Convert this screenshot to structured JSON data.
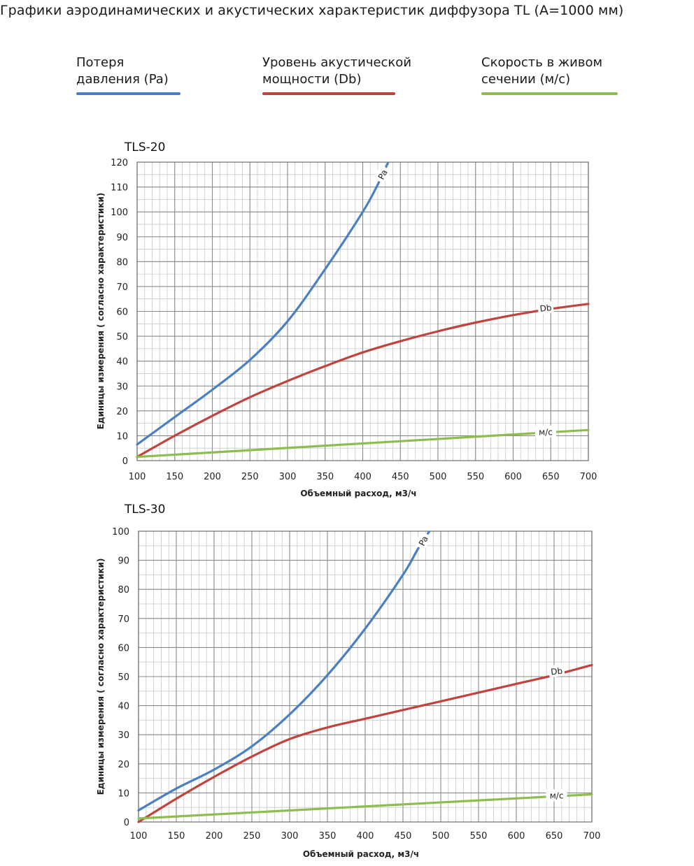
{
  "title": "Графики аэродинамических и акустических характеристик  диффузора TL (A=1000 мм)",
  "legend": [
    {
      "line1": "Потеря",
      "line2": "давления (Pa)",
      "color": "#4a7fc1"
    },
    {
      "line1": "Уровень акустической",
      "line2": "мощности (Db)",
      "color": "#c0433e"
    },
    {
      "line1": "Скорость в живом",
      "line2": "сечении (м/с)",
      "color": "#8fbc4f"
    }
  ],
  "chart_data": [
    {
      "type": "line",
      "title": "TLS-20",
      "xlabel": "Объемный расход, м3/ч",
      "ylabel": "Единицы измерения ( согласно характеристики)",
      "xlim": [
        100,
        700
      ],
      "ylim": [
        0,
        120
      ],
      "xticks": [
        100,
        150,
        200,
        250,
        300,
        350,
        400,
        450,
        500,
        550,
        600,
        650,
        700
      ],
      "yticks": [
        0,
        10,
        20,
        30,
        40,
        50,
        60,
        70,
        80,
        90,
        100,
        110,
        120
      ],
      "grid": true,
      "series": [
        {
          "name": "Pa",
          "color": "#4a7fc1",
          "x": [
            100,
            150,
            200,
            250,
            300,
            350,
            400,
            420,
            434
          ],
          "y": [
            6.5,
            17.5,
            28.5,
            40.5,
            56,
            77,
            100,
            111,
            120
          ]
        },
        {
          "name": "Db",
          "color": "#c0433e",
          "x": [
            100,
            150,
            200,
            250,
            300,
            350,
            400,
            450,
            500,
            550,
            600,
            650,
            700
          ],
          "y": [
            1.5,
            10,
            18,
            25.5,
            32,
            38,
            43.5,
            48,
            52,
            55.5,
            58.5,
            61,
            63
          ]
        },
        {
          "name": "м/с",
          "color": "#8fbc4f",
          "x": [
            100,
            700
          ],
          "y": [
            1.5,
            12.3
          ]
        }
      ]
    },
    {
      "type": "line",
      "title": "TLS-30",
      "xlabel": "Объемный расход, м3/ч",
      "ylabel": "Единицы измерения ( согласно характеристики)",
      "xlim": [
        100,
        700
      ],
      "ylim": [
        0,
        100
      ],
      "xticks": [
        100,
        150,
        200,
        250,
        300,
        350,
        400,
        450,
        500,
        550,
        600,
        650,
        700
      ],
      "yticks": [
        0,
        10,
        20,
        30,
        40,
        50,
        60,
        70,
        80,
        90,
        100
      ],
      "grid": true,
      "series": [
        {
          "name": "Pa",
          "color": "#4a7fc1",
          "x": [
            100,
            150,
            200,
            250,
            300,
            350,
            400,
            450,
            470,
            485
          ],
          "y": [
            4,
            11.5,
            18,
            26,
            37,
            50.5,
            66.5,
            85,
            94,
            100
          ]
        },
        {
          "name": "Db",
          "color": "#c0433e",
          "x": [
            100,
            150,
            200,
            250,
            300,
            350,
            400,
            450,
            500,
            550,
            600,
            650,
            700
          ],
          "y": [
            0,
            8,
            15.5,
            22.5,
            28.5,
            32.5,
            35.5,
            38.5,
            41.5,
            44.5,
            47.5,
            50.5,
            54
          ]
        },
        {
          "name": "м/с",
          "color": "#8fbc4f",
          "x": [
            100,
            700
          ],
          "y": [
            1.2,
            9.5
          ]
        }
      ]
    }
  ]
}
